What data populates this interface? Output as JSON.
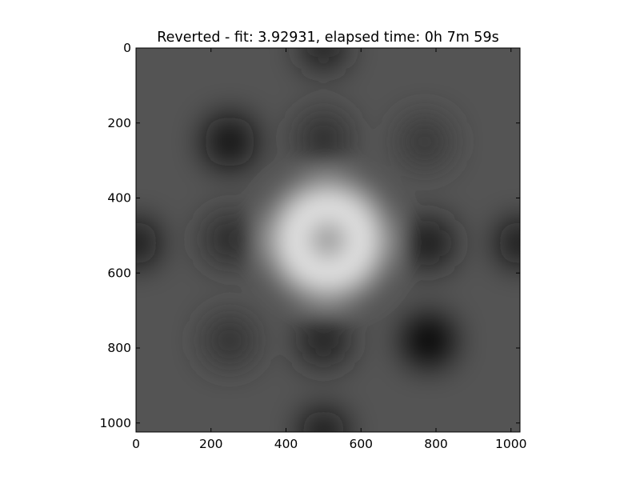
{
  "chart_data": {
    "type": "heatmap",
    "title": "Reverted - fit: 3.92931, elapsed time: 0h 7m 59s",
    "xlabel": "",
    "ylabel": "",
    "colormap": "gray",
    "image_size": [
      1024,
      1024
    ],
    "xlim": [
      0,
      1024
    ],
    "ylim": [
      1024,
      0
    ],
    "y_axis_inverted": true,
    "x_ticks": [
      0,
      200,
      400,
      600,
      800,
      1000
    ],
    "y_ticks": [
      0,
      200,
      400,
      600,
      800,
      1000
    ],
    "x_tick_labels": [
      "0",
      "200",
      "400",
      "600",
      "800",
      "1000"
    ],
    "y_tick_labels": [
      "0",
      "200",
      "400",
      "600",
      "800",
      "1000"
    ],
    "grid": false,
    "description_of_pattern": {
      "background_level": 0.33,
      "features": [
        {
          "x": 512,
          "y": 512,
          "kind": "bright-ring",
          "radius": 150,
          "peak": 0.95
        },
        {
          "x": 512,
          "y": 512,
          "kind": "dark-spot",
          "radius": 55,
          "value": 0.38
        },
        {
          "x": 250,
          "y": 250,
          "kind": "dark-spot",
          "radius": 70,
          "value": 0.03
        },
        {
          "x": 500,
          "y": 240,
          "kind": "dark-spot",
          "radius": 70,
          "value": 0.18
        },
        {
          "x": 770,
          "y": 250,
          "kind": "dark-spot",
          "radius": 70,
          "value": 0.22
        },
        {
          "x": 250,
          "y": 510,
          "kind": "dark-spot",
          "radius": 70,
          "value": 0.16
        },
        {
          "x": 780,
          "y": 520,
          "kind": "dark-spot",
          "radius": 70,
          "value": 0.1
        },
        {
          "x": 250,
          "y": 780,
          "kind": "dark-spot",
          "radius": 70,
          "value": 0.2
        },
        {
          "x": 500,
          "y": 780,
          "kind": "dark-spot",
          "radius": 70,
          "value": 0.14
        },
        {
          "x": 780,
          "y": 780,
          "kind": "dark-spot",
          "radius": 70,
          "value": 0.02
        },
        {
          "x": 0,
          "y": 520,
          "kind": "dark-spot",
          "radius": 60,
          "value": 0.05
        },
        {
          "x": 1024,
          "y": 520,
          "kind": "dark-spot",
          "radius": 60,
          "value": 0.05
        },
        {
          "x": 500,
          "y": 1024,
          "kind": "dark-spot",
          "radius": 60,
          "value": 0.05
        },
        {
          "x": 500,
          "y": 0,
          "kind": "dark-spot",
          "radius": 60,
          "value": 0.1
        }
      ]
    }
  }
}
